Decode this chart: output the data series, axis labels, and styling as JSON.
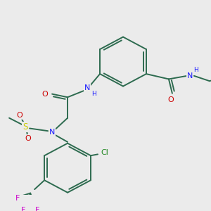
{
  "background_color": "#ebebeb",
  "figsize": [
    3.0,
    3.0
  ],
  "dpi": 100,
  "atom_colors": {
    "C": "#2d6b4f",
    "N": "#1a1aff",
    "O": "#cc0000",
    "S": "#cccc00",
    "F": "#cc00cc",
    "Cl": "#228822",
    "H": "#1a1aff"
  },
  "bond_color": "#2d6b4f",
  "bond_width": 1.4
}
